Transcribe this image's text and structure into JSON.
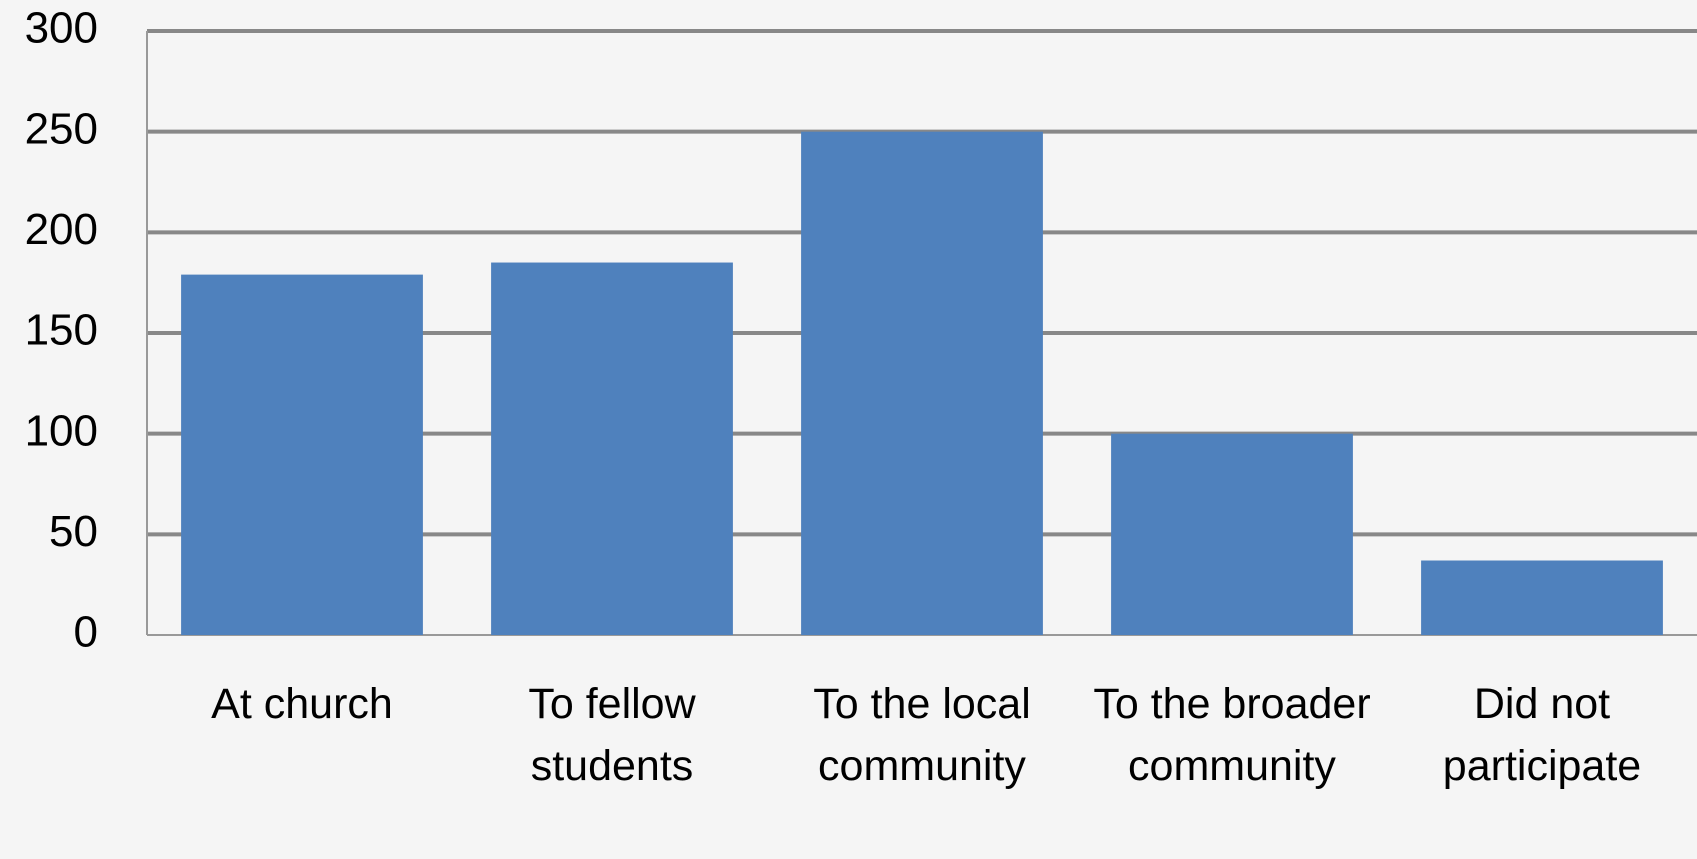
{
  "chart_data": {
    "type": "bar",
    "categories": [
      "At church",
      "To fellow students",
      "To the local community",
      "To the broader community",
      "Did not participate"
    ],
    "values": [
      179,
      185,
      250,
      100,
      37
    ],
    "color": "#4f81bd",
    "ylim": [
      0,
      300
    ],
    "yticks": [
      0,
      50,
      100,
      150,
      200,
      250,
      300
    ],
    "grid": true
  }
}
